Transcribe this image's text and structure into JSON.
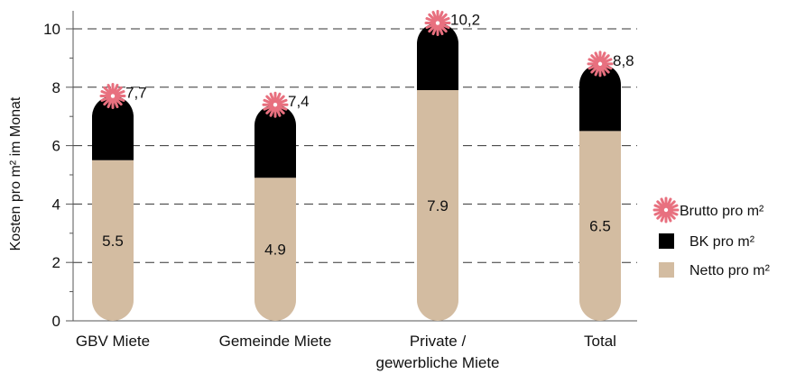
{
  "chart_data": {
    "type": "bar",
    "categories": [
      "GBV Miete",
      "Gemeinde Miete",
      "Private /|gewerbliche Miete",
      "Total"
    ],
    "series": [
      {
        "name": "Netto pro m²",
        "values": [
          5.5,
          4.9,
          7.9,
          6.5
        ]
      },
      {
        "name": "BK pro m²",
        "values": [
          2.2,
          2.5,
          2.3,
          2.3
        ]
      }
    ],
    "brutto": {
      "name": "Brutto pro m²",
      "values": [
        7.7,
        7.4,
        10.2,
        8.8
      ],
      "labels": [
        "7,7",
        "7,4",
        "10,2",
        "8,8"
      ]
    },
    "netto_labels": [
      "5.5",
      "4.9",
      "7.9",
      "6.5"
    ],
    "xlabel": "",
    "ylabel": "Kosten pro m² im Monat",
    "ylim": [
      0,
      10
    ],
    "yticks": [
      "0",
      "2",
      "4",
      "6",
      "8",
      "10"
    ],
    "grid": "horizontal dashed",
    "legend_position": "right",
    "legend": [
      "Brutto pro m²",
      "BK pro m²",
      "Netto pro m²"
    ],
    "colors": {
      "netto": "#d3bca1",
      "bk": "#000000",
      "brutto": "#e8707f",
      "grid": "#333333"
    }
  }
}
